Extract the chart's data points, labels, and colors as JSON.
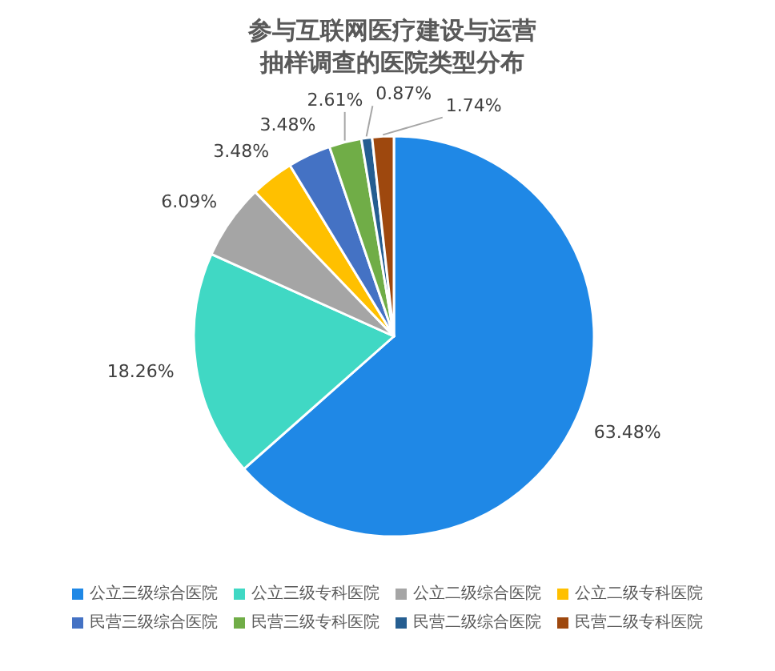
{
  "chart_data": {
    "type": "pie",
    "title": "参与互联网医疗建设与运营抽样调查的医院类型分布",
    "categories": [
      "公立三级综合医院",
      "公立三级专科医院",
      "公立二级综合医院",
      "公立二级专科医院",
      "民营三级综合医院",
      "民营三级专科医院",
      "民营二级综合医院",
      "民营二级专科医院"
    ],
    "values": [
      63.48,
      18.26,
      6.09,
      3.48,
      3.48,
      2.61,
      0.87,
      1.74
    ],
    "colors": [
      "#1f88e6",
      "#40d8c4",
      "#a5a5a5",
      "#ffc000",
      "#4472c4",
      "#70ad47",
      "#255e91",
      "#9e480e"
    ],
    "value_labels": [
      "63.48%",
      "18.26%",
      "6.09%",
      "3.48%",
      "3.48%",
      "2.61%",
      "0.87%",
      "1.74%"
    ],
    "legend": "bottom"
  }
}
